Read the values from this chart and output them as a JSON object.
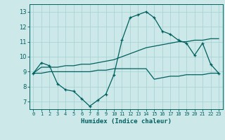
{
  "title": "",
  "xlabel": "Humidex (Indice chaleur)",
  "xlim": [
    -0.5,
    23.5
  ],
  "ylim": [
    6.5,
    13.5
  ],
  "xticks": [
    0,
    1,
    2,
    3,
    4,
    5,
    6,
    7,
    8,
    9,
    10,
    11,
    12,
    13,
    14,
    15,
    16,
    17,
    18,
    19,
    20,
    21,
    22,
    23
  ],
  "yticks": [
    7,
    8,
    9,
    10,
    11,
    12,
    13
  ],
  "background_color": "#cce8e8",
  "grid_color": "#aad4d4",
  "line_color": "#006060",
  "line1_x": [
    0,
    1,
    2,
    3,
    4,
    5,
    6,
    7,
    8,
    9,
    10,
    11,
    12,
    13,
    14,
    15,
    16,
    17,
    18,
    19,
    20,
    21,
    22,
    23
  ],
  "line1_y": [
    8.9,
    9.6,
    9.4,
    8.2,
    7.8,
    7.7,
    7.2,
    6.7,
    7.1,
    7.5,
    8.8,
    11.1,
    12.6,
    12.8,
    13.0,
    12.6,
    11.7,
    11.5,
    11.1,
    10.9,
    10.1,
    10.9,
    9.5,
    8.9
  ],
  "line2_x": [
    0,
    1,
    2,
    3,
    4,
    5,
    6,
    7,
    8,
    9,
    10,
    11,
    12,
    13,
    14,
    15,
    16,
    17,
    18,
    19,
    20,
    21,
    22,
    23
  ],
  "line2_y": [
    8.9,
    9.3,
    9.3,
    9.3,
    9.4,
    9.4,
    9.5,
    9.5,
    9.6,
    9.7,
    9.8,
    10.0,
    10.2,
    10.4,
    10.6,
    10.7,
    10.8,
    10.9,
    11.0,
    11.0,
    11.1,
    11.1,
    11.2,
    11.2
  ],
  "line3_x": [
    0,
    1,
    2,
    3,
    4,
    5,
    6,
    7,
    8,
    9,
    10,
    11,
    12,
    13,
    14,
    15,
    16,
    17,
    18,
    19,
    20,
    21,
    22,
    23
  ],
  "line3_y": [
    8.9,
    8.9,
    9.0,
    9.0,
    9.0,
    9.0,
    9.0,
    9.0,
    9.1,
    9.1,
    9.2,
    9.2,
    9.2,
    9.2,
    9.2,
    8.5,
    8.6,
    8.7,
    8.7,
    8.8,
    8.8,
    8.8,
    8.9,
    8.9
  ]
}
